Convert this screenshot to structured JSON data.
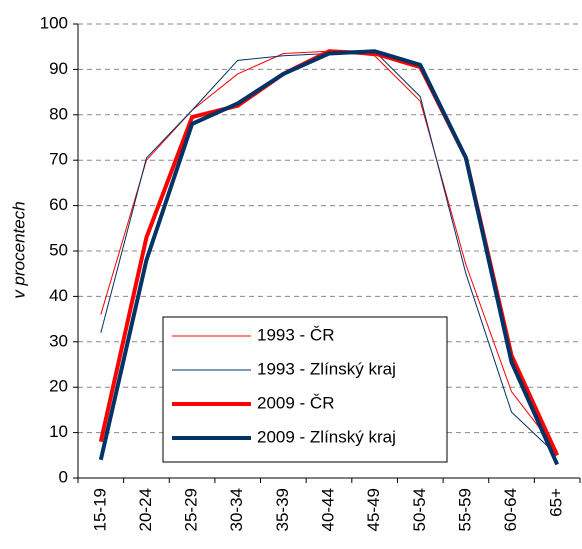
{
  "chart_data": {
    "type": "line",
    "y_label": "v procentech",
    "categories": [
      "15-19",
      "20-24",
      "25-29",
      "30-34",
      "35-39",
      "40-44",
      "45-49",
      "50-54",
      "55-59",
      "60-64",
      "65+"
    ],
    "series": [
      {
        "name": "1993 - ČR",
        "color": "#ff0000",
        "line_width": 1,
        "values": [
          36,
          70,
          81,
          89,
          93.5,
          94,
          93,
          83,
          47,
          19,
          6
        ]
      },
      {
        "name": "1993 - Zlínský kraj",
        "color": "#003366",
        "line_width": 1,
        "values": [
          32,
          70.5,
          81,
          92,
          93,
          93.5,
          94,
          84,
          45,
          14.5,
          5
        ]
      },
      {
        "name": "2009 - ČR",
        "color": "#ff0000",
        "line_width": 4,
        "values": [
          8,
          53,
          79.5,
          82,
          89,
          94,
          93.5,
          90.5,
          70.5,
          27,
          5
        ]
      },
      {
        "name": "2009 - Zlínský kraj",
        "color": "#003366",
        "line_width": 4,
        "values": [
          4,
          48,
          78,
          82.5,
          89,
          93.5,
          94,
          91,
          70.5,
          25.5,
          3
        ]
      }
    ],
    "ylim": [
      0,
      100
    ],
    "yticks": [
      0,
      10,
      20,
      30,
      40,
      50,
      60,
      70,
      80,
      90,
      100
    ],
    "grid": true
  }
}
